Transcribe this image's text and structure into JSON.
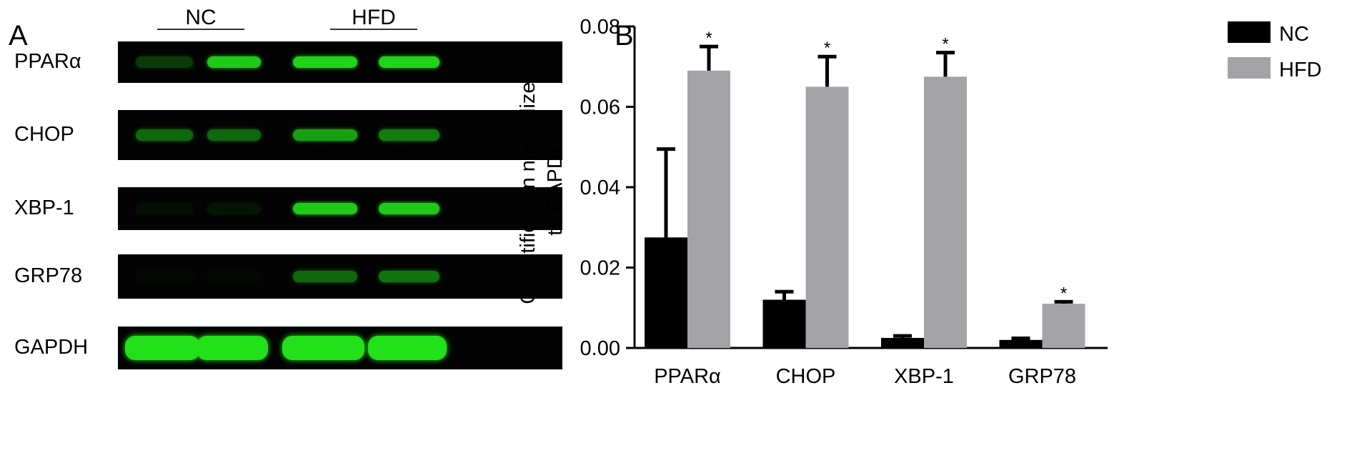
{
  "panel_a": {
    "letter": "A",
    "groups": [
      {
        "label": "NC"
      },
      {
        "label": "HFD"
      }
    ],
    "band_color": "#22e01a",
    "rows": [
      {
        "label": "PPARα",
        "intensities": [
          0.25,
          0.9,
          0.95,
          0.95
        ]
      },
      {
        "label": "CHOP",
        "intensities": [
          0.45,
          0.45,
          0.7,
          0.55
        ]
      },
      {
        "label": "XBP-1",
        "intensities": [
          0.05,
          0.08,
          0.9,
          0.9
        ]
      },
      {
        "label": "GRP78",
        "intensities": [
          0.03,
          0.03,
          0.45,
          0.5
        ]
      },
      {
        "label": "GAPDH",
        "intensities": [
          1.0,
          1.0,
          1.0,
          1.0
        ]
      }
    ]
  },
  "panel_b": {
    "letter": "B"
  },
  "chart_data": {
    "type": "bar",
    "categories": [
      "PPARα",
      "CHOP",
      "XBP-1",
      "GRP78"
    ],
    "series": [
      {
        "name": "NC",
        "color": "#000000",
        "values": [
          0.0275,
          0.012,
          0.0025,
          0.002
        ],
        "errors": [
          0.022,
          0.002,
          0.0005,
          0.0004
        ]
      },
      {
        "name": "HFD",
        "color": "#a3a3a8",
        "values": [
          0.069,
          0.065,
          0.0675,
          0.011
        ],
        "errors": [
          0.006,
          0.0075,
          0.006,
          0.0005
        ]
      }
    ],
    "significance": [
      "*",
      "*",
      "*",
      "*"
    ],
    "ylabel_lines": [
      "Quantification normalized",
      "to GAPDH"
    ],
    "xlabel": "",
    "ylim": [
      0,
      0.08
    ],
    "yticks": [
      "0.00",
      "0.02",
      "0.04",
      "0.06",
      "0.08"
    ],
    "grid": false,
    "legend_position": "top-right"
  }
}
